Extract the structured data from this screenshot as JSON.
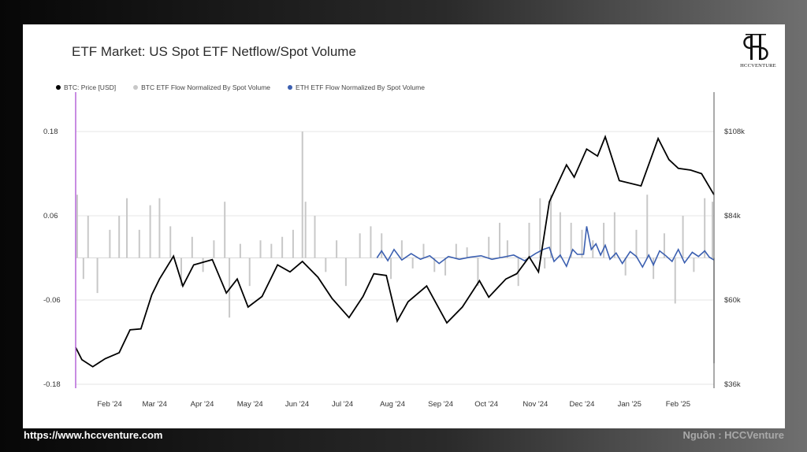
{
  "footer": {
    "url": "https://www.hccventure.com",
    "source": "Nguồn : HCCVenture"
  },
  "logo": {
    "text": "HCCVENTURE",
    "icon": "hcc-logo-icon"
  },
  "colors": {
    "btc_price": "#000000",
    "btc_flow": "#c8c8c8",
    "eth_flow": "#3b5fb0",
    "start_marker": "#b566d9"
  },
  "chart_data": {
    "type": "line",
    "title": "ETF Market: US Spot ETF Netflow/Spot Volume",
    "legend": [
      {
        "key": "btc_price",
        "label": "BTC: Price [USD]",
        "color": "#000000"
      },
      {
        "key": "btc_flow",
        "label": "BTC ETF Flow Normalized By Spot Volume",
        "color": "#c8c8c8"
      },
      {
        "key": "eth_flow",
        "label": "ETH ETF Flow Normalized By Spot Volume",
        "color": "#3b5fb0"
      }
    ],
    "legend_position": "top-left",
    "x_ticks": [
      "Feb '24",
      "Mar '24",
      "Apr '24",
      "May '24",
      "Jun '24",
      "Jul '24",
      "Aug '24",
      "Sep '24",
      "Oct '24",
      "Nov '24",
      "Dec '24",
      "Jan '25",
      "Feb '25"
    ],
    "x_range": [
      "2024-01-11",
      "2025-02-25"
    ],
    "y_left": {
      "ticks": [
        "0.18",
        "0.06",
        "-0.06",
        "-0.18"
      ],
      "values": [
        0.18,
        0.06,
        -0.06,
        -0.18
      ],
      "range": [
        -0.18,
        0.18
      ]
    },
    "y_right": {
      "ticks": [
        "$108k",
        "$84k",
        "$60k",
        "$36k"
      ],
      "values": [
        108000,
        84000,
        60000,
        36000
      ],
      "range": [
        36000,
        108000
      ]
    },
    "grid": true,
    "series": [
      {
        "name": "BTC: Price [USD]",
        "axis": "right",
        "points": [
          [
            "2024-01-11",
            46500
          ],
          [
            "2024-01-15",
            43000
          ],
          [
            "2024-01-22",
            41000
          ],
          [
            "2024-01-30",
            43300
          ],
          [
            "2024-02-08",
            45000
          ],
          [
            "2024-02-15",
            51500
          ],
          [
            "2024-02-22",
            51800
          ],
          [
            "2024-02-29",
            61500
          ],
          [
            "2024-03-05",
            66000
          ],
          [
            "2024-03-14",
            72500
          ],
          [
            "2024-03-20",
            64000
          ],
          [
            "2024-03-27",
            70000
          ],
          [
            "2024-04-08",
            71500
          ],
          [
            "2024-04-17",
            62000
          ],
          [
            "2024-04-24",
            66000
          ],
          [
            "2024-05-01",
            58000
          ],
          [
            "2024-05-10",
            61000
          ],
          [
            "2024-05-20",
            70000
          ],
          [
            "2024-05-28",
            68000
          ],
          [
            "2024-06-05",
            71000
          ],
          [
            "2024-06-15",
            66500
          ],
          [
            "2024-06-24",
            60500
          ],
          [
            "2024-07-05",
            55000
          ],
          [
            "2024-07-14",
            61000
          ],
          [
            "2024-07-21",
            67500
          ],
          [
            "2024-07-29",
            67000
          ],
          [
            "2024-08-05",
            54000
          ],
          [
            "2024-08-12",
            59500
          ],
          [
            "2024-08-24",
            64000
          ],
          [
            "2024-09-06",
            53500
          ],
          [
            "2024-09-16",
            58000
          ],
          [
            "2024-09-27",
            65500
          ],
          [
            "2024-10-03",
            60800
          ],
          [
            "2024-10-14",
            66000
          ],
          [
            "2024-10-21",
            67500
          ],
          [
            "2024-10-29",
            72300
          ],
          [
            "2024-11-04",
            68000
          ],
          [
            "2024-11-11",
            88000
          ],
          [
            "2024-11-22",
            98500
          ],
          [
            "2024-11-27",
            95000
          ],
          [
            "2024-12-05",
            103000
          ],
          [
            "2024-12-12",
            101000
          ],
          [
            "2024-12-17",
            106500
          ],
          [
            "2024-12-26",
            94000
          ],
          [
            "2025-01-09",
            92500
          ],
          [
            "2025-01-20",
            106000
          ],
          [
            "2025-01-27",
            100000
          ],
          [
            "2025-02-02",
            97500
          ],
          [
            "2025-02-10",
            97000
          ],
          [
            "2025-02-17",
            96000
          ],
          [
            "2025-02-25",
            90000
          ]
        ]
      },
      {
        "name": "BTC ETF Flow Normalized By Spot Volume",
        "axis": "left",
        "kind": "bars",
        "points": [
          [
            "2024-01-12",
            0.09
          ],
          [
            "2024-01-16",
            -0.03
          ],
          [
            "2024-01-19",
            0.06
          ],
          [
            "2024-01-25",
            -0.05
          ],
          [
            "2024-02-02",
            0.04
          ],
          [
            "2024-02-08",
            0.06
          ],
          [
            "2024-02-13",
            0.085
          ],
          [
            "2024-02-21",
            0.04
          ],
          [
            "2024-02-28",
            0.075
          ],
          [
            "2024-03-05",
            0.085
          ],
          [
            "2024-03-12",
            0.045
          ],
          [
            "2024-03-19",
            -0.04
          ],
          [
            "2024-03-26",
            0.03
          ],
          [
            "2024-04-02",
            -0.02
          ],
          [
            "2024-04-09",
            0.025
          ],
          [
            "2024-04-16",
            0.08
          ],
          [
            "2024-04-19",
            -0.085
          ],
          [
            "2024-04-26",
            0.02
          ],
          [
            "2024-05-02",
            -0.04
          ],
          [
            "2024-05-09",
            0.025
          ],
          [
            "2024-05-16",
            0.02
          ],
          [
            "2024-05-23",
            0.03
          ],
          [
            "2024-05-30",
            0.04
          ],
          [
            "2024-06-05",
            0.18
          ],
          [
            "2024-06-07",
            0.08
          ],
          [
            "2024-06-13",
            0.06
          ],
          [
            "2024-06-20",
            -0.02
          ],
          [
            "2024-06-27",
            0.025
          ],
          [
            "2024-07-03",
            -0.04
          ],
          [
            "2024-07-12",
            0.035
          ],
          [
            "2024-07-19",
            0.045
          ],
          [
            "2024-07-26",
            0.035
          ],
          [
            "2024-08-01",
            -0.03
          ],
          [
            "2024-08-08",
            0.025
          ],
          [
            "2024-08-15",
            -0.015
          ],
          [
            "2024-08-22",
            0.02
          ],
          [
            "2024-08-29",
            -0.02
          ],
          [
            "2024-09-05",
            -0.025
          ],
          [
            "2024-09-12",
            0.02
          ],
          [
            "2024-09-19",
            0.015
          ],
          [
            "2024-09-26",
            -0.04
          ],
          [
            "2024-10-03",
            0.03
          ],
          [
            "2024-10-10",
            0.05
          ],
          [
            "2024-10-15",
            0.025
          ],
          [
            "2024-10-22",
            -0.04
          ],
          [
            "2024-10-29",
            0.05
          ],
          [
            "2024-11-05",
            0.085
          ],
          [
            "2024-11-08",
            -0.015
          ],
          [
            "2024-11-12",
            0.09
          ],
          [
            "2024-11-18",
            0.065
          ],
          [
            "2024-11-25",
            0.05
          ],
          [
            "2024-12-02",
            0.04
          ],
          [
            "2024-12-09",
            0.025
          ],
          [
            "2024-12-16",
            0.05
          ],
          [
            "2024-12-23",
            0.065
          ],
          [
            "2024-12-30",
            -0.025
          ],
          [
            "2025-01-06",
            0.04
          ],
          [
            "2025-01-13",
            0.09
          ],
          [
            "2025-01-17",
            -0.03
          ],
          [
            "2025-01-24",
            0.035
          ],
          [
            "2025-01-31",
            -0.065
          ],
          [
            "2025-02-05",
            0.06
          ],
          [
            "2025-02-12",
            -0.02
          ],
          [
            "2025-02-19",
            0.085
          ],
          [
            "2025-02-24",
            0.08
          ],
          [
            "2025-02-25",
            -0.15
          ]
        ]
      },
      {
        "name": "ETH ETF Flow Normalized By Spot Volume",
        "axis": "left",
        "points": [
          [
            "2024-07-23",
            0.0
          ],
          [
            "2024-07-26",
            0.01
          ],
          [
            "2024-07-30",
            -0.004
          ],
          [
            "2024-08-03",
            0.012
          ],
          [
            "2024-08-08",
            -0.003
          ],
          [
            "2024-08-14",
            0.006
          ],
          [
            "2024-08-20",
            -0.002
          ],
          [
            "2024-08-26",
            0.003
          ],
          [
            "2024-09-01",
            -0.008
          ],
          [
            "2024-09-07",
            0.002
          ],
          [
            "2024-09-14",
            -0.002
          ],
          [
            "2024-09-21",
            0.001
          ],
          [
            "2024-09-28",
            0.003
          ],
          [
            "2024-10-05",
            -0.002
          ],
          [
            "2024-10-12",
            0.001
          ],
          [
            "2024-10-19",
            0.004
          ],
          [
            "2024-10-26",
            -0.004
          ],
          [
            "2024-11-02",
            0.006
          ],
          [
            "2024-11-07",
            0.012
          ],
          [
            "2024-11-11",
            0.015
          ],
          [
            "2024-11-14",
            -0.005
          ],
          [
            "2024-11-18",
            0.004
          ],
          [
            "2024-11-22",
            -0.012
          ],
          [
            "2024-11-26",
            0.012
          ],
          [
            "2024-11-29",
            0.005
          ],
          [
            "2024-12-03",
            0.005
          ],
          [
            "2024-12-05",
            0.045
          ],
          [
            "2024-12-08",
            0.012
          ],
          [
            "2024-12-11",
            0.02
          ],
          [
            "2024-12-14",
            0.004
          ],
          [
            "2024-12-17",
            0.018
          ],
          [
            "2024-12-20",
            -0.002
          ],
          [
            "2024-12-24",
            0.007
          ],
          [
            "2024-12-28",
            -0.008
          ],
          [
            "2025-01-02",
            0.009
          ],
          [
            "2025-01-06",
            0.002
          ],
          [
            "2025-01-10",
            -0.013
          ],
          [
            "2025-01-14",
            0.004
          ],
          [
            "2025-01-17",
            -0.01
          ],
          [
            "2025-01-21",
            0.01
          ],
          [
            "2025-01-25",
            0.003
          ],
          [
            "2025-01-29",
            -0.005
          ],
          [
            "2025-02-02",
            0.012
          ],
          [
            "2025-02-06",
            -0.007
          ],
          [
            "2025-02-11",
            0.008
          ],
          [
            "2025-02-15",
            0.002
          ],
          [
            "2025-02-19",
            0.01
          ],
          [
            "2025-02-22",
            0.001
          ],
          [
            "2025-02-25",
            -0.003
          ]
        ]
      }
    ]
  }
}
